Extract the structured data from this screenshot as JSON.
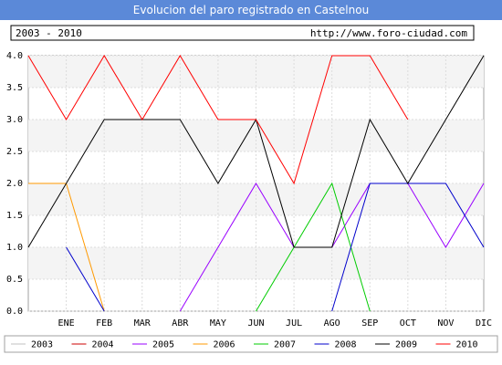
{
  "chart_data": {
    "type": "line",
    "title": "Evolucion del paro registrado en Castelnou",
    "period_label": "2003 - 2010",
    "source_url": "http://www.foro-ciudad.com",
    "categories": [
      "",
      "ENE",
      "FEB",
      "MAR",
      "ABR",
      "MAY",
      "JUN",
      "JUL",
      "AGO",
      "SEP",
      "OCT",
      "NOV",
      "DIC"
    ],
    "ylim": [
      0,
      4
    ],
    "yticks": [
      "0.0",
      "0.5",
      "1.0",
      "1.5",
      "2.0",
      "2.5",
      "3.0",
      "3.5",
      "4.0"
    ],
    "grid": true,
    "legend_position": "bottom",
    "series": [
      {
        "name": "2003",
        "color": "#c0c0c0",
        "values": [
          null,
          null,
          null,
          null,
          null,
          null,
          null,
          null,
          null,
          null,
          null,
          null,
          null
        ]
      },
      {
        "name": "2004",
        "color": "#cc0000",
        "values": [
          null,
          null,
          null,
          null,
          null,
          null,
          null,
          null,
          null,
          null,
          null,
          null,
          null
        ]
      },
      {
        "name": "2005",
        "color": "#9900ff",
        "values": [
          null,
          null,
          null,
          null,
          0,
          1,
          2,
          1,
          1,
          2,
          2,
          1,
          2
        ]
      },
      {
        "name": "2006",
        "color": "#ff9900",
        "values": [
          2,
          2,
          0,
          null,
          null,
          null,
          null,
          null,
          null,
          null,
          null,
          null,
          null
        ]
      },
      {
        "name": "2007",
        "color": "#00cc00",
        "values": [
          null,
          null,
          null,
          null,
          null,
          null,
          0,
          1,
          2,
          0,
          null,
          null,
          null
        ]
      },
      {
        "name": "2008",
        "color": "#0000cc",
        "values": [
          null,
          1,
          0,
          null,
          null,
          null,
          null,
          null,
          0,
          2,
          2,
          2,
          1
        ]
      },
      {
        "name": "2009",
        "color": "#000000",
        "values": [
          1,
          2,
          3,
          3,
          3,
          2,
          3,
          1,
          1,
          3,
          2,
          3,
          4
        ]
      },
      {
        "name": "2010",
        "color": "#ff0000",
        "values": [
          4,
          3,
          4,
          3,
          4,
          3,
          3,
          2,
          4,
          4,
          3,
          null,
          null
        ]
      }
    ]
  }
}
